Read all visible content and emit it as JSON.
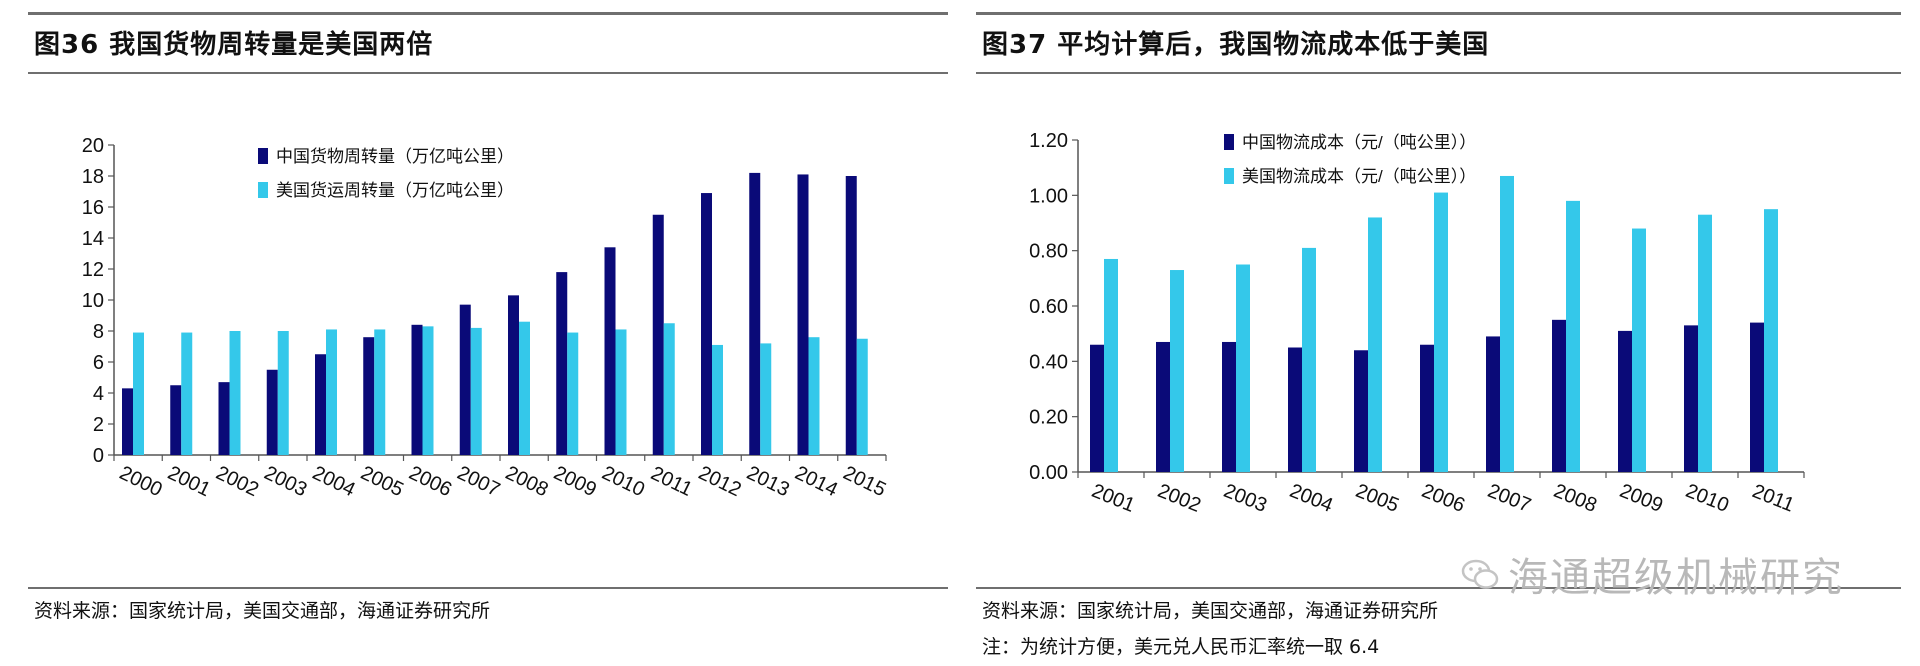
{
  "panels": {
    "left": {
      "title": "图36  我国货物周转量是美国两倍",
      "source": "资料来源：国家统计局，美国交通部，海通证券研究所"
    },
    "right": {
      "title": "图37 平均计算后，我国物流成本低于美国",
      "source": "资料来源：国家统计局，美国交通部，海通证券研究所",
      "note": "注：为统计方便，美元兑人民币汇率统一取 6.4"
    }
  },
  "watermark": {
    "text": "海通超级机械研究"
  },
  "colors": {
    "china": "#0a0a78",
    "usa": "#34c8ea",
    "axis": "#555555",
    "rule": "#6f6f6f"
  },
  "chart_data": [
    {
      "type": "bar",
      "title": "图36  我国货物周转量是美国两倍",
      "categories": [
        "2000",
        "2001",
        "2002",
        "2003",
        "2004",
        "2005",
        "2006",
        "2007",
        "2008",
        "2009",
        "2010",
        "2011",
        "2012",
        "2013",
        "2014",
        "2015"
      ],
      "series": [
        {
          "name": "中国货物周转量（万亿吨公里）",
          "color": "#0a0a78",
          "values": [
            4.3,
            4.5,
            4.7,
            5.5,
            6.5,
            7.6,
            8.4,
            9.7,
            10.3,
            11.8,
            13.4,
            15.5,
            16.9,
            18.2,
            18.1,
            18.0
          ]
        },
        {
          "name": "美国货运周转量（万亿吨公里）",
          "color": "#34c8ea",
          "values": [
            7.9,
            7.9,
            8.0,
            8.0,
            8.1,
            8.1,
            8.3,
            8.2,
            8.6,
            7.9,
            8.1,
            8.5,
            7.1,
            7.2,
            7.6,
            7.5
          ]
        }
      ],
      "ylim": [
        0,
        20
      ],
      "yticks": [
        "0",
        "2",
        "4",
        "6",
        "8",
        "10",
        "12",
        "14",
        "16",
        "18",
        "20"
      ],
      "grid": false,
      "legend_position": "top-center"
    },
    {
      "type": "bar",
      "title": "图37 平均计算后，我国物流成本低于美国",
      "categories": [
        "2001",
        "2002",
        "2003",
        "2004",
        "2005",
        "2006",
        "2007",
        "2008",
        "2009",
        "2010",
        "2011"
      ],
      "series": [
        {
          "name": "中国物流成本（元/（吨公里））",
          "color": "#0a0a78",
          "values": [
            0.46,
            0.47,
            0.47,
            0.45,
            0.44,
            0.46,
            0.49,
            0.55,
            0.51,
            0.53,
            0.54
          ]
        },
        {
          "name": "美国物流成本（元/（吨公里））",
          "color": "#34c8ea",
          "values": [
            0.77,
            0.73,
            0.75,
            0.81,
            0.92,
            1.01,
            1.07,
            0.98,
            0.88,
            0.93,
            0.95
          ]
        }
      ],
      "ylim": [
        0,
        1.2
      ],
      "yticks": [
        "0.00",
        "0.20",
        "0.40",
        "0.60",
        "0.80",
        "1.00",
        "1.20"
      ],
      "grid": false,
      "legend_position": "top-center"
    }
  ]
}
